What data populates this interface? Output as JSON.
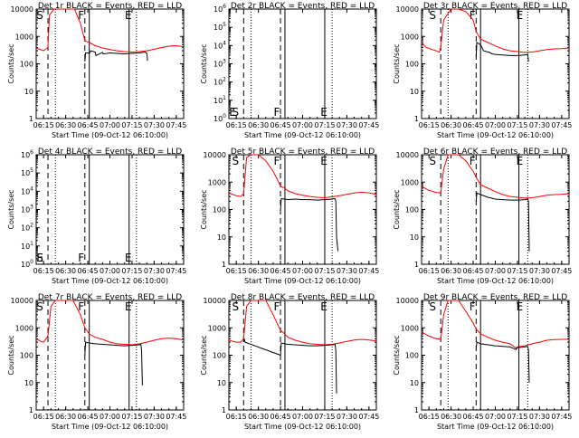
{
  "figure": {
    "xlabel": "Start Time (09-Oct-12 06:10:00)",
    "ylabel": "Counts/sec",
    "x_ticks": [
      "06:15",
      "06:30",
      "06:45",
      "07:00",
      "07:15",
      "07:30",
      "07:45"
    ],
    "x_tick_minutes": [
      5,
      20,
      35,
      50,
      65,
      80,
      95
    ],
    "xlim_minutes_after_0610": [
      0,
      100
    ],
    "colors": {
      "events": "#000000",
      "lld": "#ff0000"
    }
  },
  "chart_data": [
    {
      "type": "line",
      "title": "Det 1r BLACK = Events, RED = LLD",
      "ylabel": "Counts/sec",
      "xlabel": "",
      "y_scale": "log",
      "ylim": [
        1,
        10000
      ],
      "y_ticks": [
        "1",
        "10",
        "100",
        "1000",
        "10000"
      ],
      "markers": [
        {
          "minute": 8,
          "style": "dashed",
          "label": "S"
        },
        {
          "minute": 13,
          "style": "dotted",
          "label": ""
        },
        {
          "minute": 33,
          "style": "dashed",
          "label": ""
        },
        {
          "minute": 36,
          "style": "solid",
          "label": "F"
        },
        {
          "minute": 63,
          "style": "solid",
          "label": ""
        },
        {
          "minute": 68,
          "style": "dotted",
          "label": "E"
        }
      ],
      "series": [
        {
          "name": "LLD",
          "color": "#ff0000",
          "x": [
            0,
            5,
            8,
            9,
            12,
            20,
            26,
            30,
            33,
            36,
            40,
            45,
            50,
            55,
            60,
            65,
            70,
            75,
            80,
            85,
            90,
            95,
            100
          ],
          "y": [
            380,
            300,
            400,
            6000,
            10000,
            10000,
            10000,
            3000,
            700,
            600,
            460,
            380,
            330,
            300,
            280,
            270,
            280,
            300,
            340,
            390,
            440,
            460,
            420
          ]
        },
        {
          "name": "Events",
          "color": "#000000",
          "x": [
            33,
            33.5,
            35,
            36,
            37,
            40,
            40.5,
            45,
            45.5,
            50,
            55,
            60,
            65,
            70,
            74,
            75,
            75.5
          ],
          "y": [
            120,
            250,
            250,
            240,
            300,
            270,
            200,
            260,
            230,
            250,
            240,
            230,
            240,
            250,
            270,
            240,
            130
          ]
        }
      ]
    },
    {
      "type": "line",
      "title": "Det 2r BLACK = Events, RED = LLD",
      "ylabel": "Counts/sec",
      "xlabel": "",
      "y_scale": "log",
      "ylim": [
        1,
        1000000
      ],
      "y_ticks": [
        "10^0",
        "10^1",
        "10^2",
        "10^3",
        "10^4",
        "10^5",
        "10^6"
      ],
      "markers": [
        {
          "minute": 10,
          "style": "dashed",
          "label": "S"
        },
        {
          "minute": 15,
          "style": "dotted",
          "label": ""
        },
        {
          "minute": 35,
          "style": "dashed",
          "label": ""
        },
        {
          "minute": 38,
          "style": "solid",
          "label": "F"
        },
        {
          "minute": 65,
          "style": "solid",
          "label": ""
        },
        {
          "minute": 70,
          "style": "dotted",
          "label": "E"
        }
      ],
      "corner_label": "E",
      "series": []
    },
    {
      "type": "line",
      "title": "Det 3r BLACK = Events, RED = LLD",
      "ylabel": "Counts/sec",
      "xlabel": "",
      "y_scale": "log",
      "ylim": [
        1,
        10000
      ],
      "y_ticks": [
        "1",
        "10",
        "100",
        "1000",
        "10000"
      ],
      "markers": [
        {
          "minute": 13,
          "style": "dashed",
          "label": "S"
        },
        {
          "minute": 18,
          "style": "dotted",
          "label": ""
        },
        {
          "minute": 37,
          "style": "dashed",
          "label": ""
        },
        {
          "minute": 40,
          "style": "solid",
          "label": "F"
        },
        {
          "minute": 66,
          "style": "solid",
          "label": ""
        },
        {
          "minute": 72,
          "style": "dotted",
          "label": "E"
        }
      ],
      "series": [
        {
          "name": "LLD",
          "color": "#ff0000",
          "x": [
            0,
            3,
            8,
            10,
            12,
            13,
            15,
            20,
            25,
            30,
            35,
            37,
            40,
            45,
            50,
            55,
            60,
            65,
            70,
            75,
            80,
            85,
            90,
            95,
            100
          ],
          "y": [
            600,
            400,
            320,
            300,
            260,
            420,
            4000,
            10000,
            10000,
            8000,
            4000,
            1500,
            800,
            600,
            450,
            350,
            300,
            280,
            260,
            270,
            300,
            330,
            350,
            360,
            380
          ]
        },
        {
          "name": "Events",
          "color": "#000000",
          "x": [
            37,
            37.5,
            40,
            42,
            44,
            46,
            48,
            50,
            55,
            60,
            65,
            70,
            72,
            72.5
          ],
          "y": [
            180,
            600,
            500,
            300,
            280,
            260,
            230,
            220,
            210,
            200,
            200,
            210,
            220,
            120
          ]
        }
      ]
    },
    {
      "type": "line",
      "title": "Det 4r BLACK = Events, RED = LLD",
      "ylabel": "Counts/sec",
      "xlabel": "",
      "y_scale": "log",
      "ylim": [
        1,
        1000000
      ],
      "y_ticks": [
        "10^0",
        "10^1",
        "10^2",
        "10^3",
        "10^4",
        "10^5",
        "10^6"
      ],
      "markers": [
        {
          "minute": 8,
          "style": "dashed",
          "label": "S"
        },
        {
          "minute": 13,
          "style": "dotted",
          "label": ""
        },
        {
          "minute": 33,
          "style": "dashed",
          "label": ""
        },
        {
          "minute": 36,
          "style": "solid",
          "label": "F"
        },
        {
          "minute": 63,
          "style": "solid",
          "label": ""
        },
        {
          "minute": 68,
          "style": "dotted",
          "label": "E"
        }
      ],
      "corner_label": "E",
      "series": []
    },
    {
      "type": "line",
      "title": "Det 5r BLACK = Events, RED = LLD",
      "ylabel": "Counts/sec",
      "xlabel": "",
      "y_scale": "log",
      "ylim": [
        1,
        10000
      ],
      "y_ticks": [
        "1",
        "10",
        "100",
        "1000",
        "10000"
      ],
      "markers": [
        {
          "minute": 10,
          "style": "dashed",
          "label": "S"
        },
        {
          "minute": 15,
          "style": "dotted",
          "label": ""
        },
        {
          "minute": 35,
          "style": "dashed",
          "label": ""
        },
        {
          "minute": 38,
          "style": "solid",
          "label": "F"
        },
        {
          "minute": 65,
          "style": "solid",
          "label": ""
        },
        {
          "minute": 70,
          "style": "dotted",
          "label": "E"
        }
      ],
      "series": [
        {
          "name": "LLD",
          "color": "#ff0000",
          "x": [
            0,
            5,
            8,
            10,
            12,
            15,
            20,
            25,
            30,
            33,
            35,
            38,
            40,
            45,
            50,
            55,
            60,
            65,
            70,
            75,
            80,
            85,
            90,
            95,
            100
          ],
          "y": [
            400,
            320,
            300,
            380,
            8000,
            10000,
            10000,
            6000,
            2500,
            1200,
            700,
            600,
            480,
            380,
            330,
            300,
            280,
            270,
            290,
            320,
            360,
            400,
            430,
            400,
            360
          ]
        },
        {
          "name": "Events",
          "color": "#000000",
          "x": [
            35,
            35.5,
            38,
            40,
            45,
            50,
            55,
            60,
            65,
            70,
            72,
            72.5,
            73,
            74
          ],
          "y": [
            100,
            250,
            240,
            230,
            240,
            230,
            230,
            220,
            230,
            240,
            250,
            200,
            10,
            3
          ]
        }
      ]
    },
    {
      "type": "line",
      "title": "Det 6r BLACK = Events, RED = LLD",
      "ylabel": "Counts/sec",
      "xlabel": "",
      "y_scale": "log",
      "ylim": [
        1,
        10000
      ],
      "y_ticks": [
        "1",
        "10",
        "100",
        "1000",
        "10000"
      ],
      "markers": [
        {
          "minute": 13,
          "style": "dashed",
          "label": "S"
        },
        {
          "minute": 18,
          "style": "dotted",
          "label": ""
        },
        {
          "minute": 37,
          "style": "dashed",
          "label": ""
        },
        {
          "minute": 40,
          "style": "solid",
          "label": "F"
        },
        {
          "minute": 66,
          "style": "solid",
          "label": ""
        },
        {
          "minute": 72,
          "style": "dotted",
          "label": "E"
        }
      ],
      "series": [
        {
          "name": "LLD",
          "color": "#ff0000",
          "x": [
            0,
            5,
            10,
            13,
            15,
            18,
            20,
            25,
            30,
            35,
            37,
            40,
            45,
            50,
            55,
            60,
            65,
            70,
            75,
            80,
            85,
            90,
            95,
            100
          ],
          "y": [
            700,
            500,
            420,
            400,
            3000,
            10000,
            10000,
            10000,
            6000,
            2500,
            1500,
            800,
            600,
            450,
            350,
            300,
            280,
            260,
            270,
            300,
            330,
            350,
            360,
            380
          ]
        },
        {
          "name": "Events",
          "color": "#000000",
          "x": [
            37,
            37.5,
            40,
            45,
            50,
            55,
            60,
            65,
            70,
            72,
            72.5,
            73
          ],
          "y": [
            200,
            400,
            350,
            280,
            240,
            230,
            220,
            220,
            230,
            240,
            200,
            3
          ]
        }
      ]
    },
    {
      "type": "line",
      "title": "Det 7r BLACK = Events, RED = LLD",
      "ylabel": "Counts/sec",
      "xlabel": "",
      "y_scale": "log",
      "ylim": [
        1,
        10000
      ],
      "y_ticks": [
        "1",
        "10",
        "100",
        "1000",
        "10000"
      ],
      "markers": [
        {
          "minute": 8,
          "style": "dashed",
          "label": "S"
        },
        {
          "minute": 13,
          "style": "dotted",
          "label": ""
        },
        {
          "minute": 33,
          "style": "dashed",
          "label": ""
        },
        {
          "minute": 36,
          "style": "solid",
          "label": "F"
        },
        {
          "minute": 63,
          "style": "solid",
          "label": ""
        },
        {
          "minute": 68,
          "style": "dotted",
          "label": "E"
        }
      ],
      "series": [
        {
          "name": "LLD",
          "color": "#ff0000",
          "x": [
            0,
            3,
            5,
            8,
            10,
            13,
            20,
            25,
            30,
            33,
            36,
            40,
            45,
            50,
            55,
            60,
            65,
            70,
            75,
            80,
            85,
            90,
            95,
            100
          ],
          "y": [
            400,
            320,
            300,
            500,
            6000,
            10000,
            10000,
            10000,
            3000,
            1000,
            600,
            450,
            380,
            300,
            260,
            250,
            240,
            260,
            300,
            350,
            400,
            420,
            400,
            360
          ]
        },
        {
          "name": "Events",
          "color": "#000000",
          "x": [
            33,
            33.5,
            36,
            40,
            45,
            50,
            55,
            60,
            65,
            70,
            71,
            71.5,
            72
          ],
          "y": [
            100,
            300,
            280,
            260,
            250,
            240,
            230,
            220,
            230,
            240,
            250,
            150,
            8
          ]
        }
      ]
    },
    {
      "type": "line",
      "title": "Det 8r BLACK = Events, RED = LLD",
      "ylabel": "Counts/sec",
      "xlabel": "",
      "y_scale": "log",
      "ylim": [
        1,
        10000
      ],
      "y_ticks": [
        "1",
        "10",
        "100",
        "1000",
        "10000"
      ],
      "markers": [
        {
          "minute": 10,
          "style": "dashed",
          "label": "S"
        },
        {
          "minute": 15,
          "style": "dotted",
          "label": ""
        },
        {
          "minute": 35,
          "style": "dashed",
          "label": ""
        },
        {
          "minute": 38,
          "style": "solid",
          "label": "F"
        },
        {
          "minute": 65,
          "style": "solid",
          "label": ""
        },
        {
          "minute": 70,
          "style": "dotted",
          "label": "E"
        }
      ],
      "series": [
        {
          "name": "LLD",
          "color": "#ff0000",
          "x": [
            0,
            5,
            8,
            10,
            12,
            15,
            20,
            25,
            30,
            35,
            38,
            40,
            45,
            50,
            55,
            60,
            65,
            70,
            75,
            80,
            85,
            90,
            95,
            100
          ],
          "y": [
            350,
            300,
            300,
            400,
            6000,
            10000,
            10000,
            10000,
            3000,
            800,
            600,
            450,
            350,
            300,
            260,
            250,
            240,
            250,
            280,
            320,
            360,
            380,
            360,
            330
          ]
        },
        {
          "name": "Events",
          "color": "#000000",
          "x": [
            10,
            10.5,
            11,
            35,
            35.5,
            38,
            40,
            45,
            50,
            55,
            60,
            65,
            70,
            72,
            72.5,
            73
          ],
          "y": [
            300,
            400,
            300,
            100,
            280,
            260,
            250,
            240,
            230,
            220,
            220,
            230,
            240,
            250,
            150,
            4
          ]
        }
      ]
    },
    {
      "type": "line",
      "title": "Det 9r BLACK = Events, RED = LLD",
      "ylabel": "Counts/sec",
      "xlabel": "",
      "y_scale": "log",
      "ylim": [
        1,
        10000
      ],
      "y_ticks": [
        "1",
        "10",
        "100",
        "1000",
        "10000"
      ],
      "markers": [
        {
          "minute": 13,
          "style": "dashed",
          "label": "S"
        },
        {
          "minute": 18,
          "style": "dotted",
          "label": ""
        },
        {
          "minute": 37,
          "style": "dashed",
          "label": ""
        },
        {
          "minute": 40,
          "style": "solid",
          "label": "F"
        },
        {
          "minute": 66,
          "style": "solid",
          "label": ""
        },
        {
          "minute": 72,
          "style": "dotted",
          "label": "E"
        }
      ],
      "series": [
        {
          "name": "LLD",
          "color": "#ff0000",
          "x": [
            0,
            5,
            10,
            13,
            15,
            18,
            20,
            25,
            30,
            35,
            37,
            40,
            45,
            50,
            55,
            60,
            62,
            64,
            65,
            70,
            75,
            80,
            85,
            90,
            95,
            100
          ],
          "y": [
            700,
            500,
            400,
            380,
            3000,
            10000,
            10000,
            10000,
            4000,
            1500,
            900,
            600,
            450,
            350,
            300,
            260,
            220,
            180,
            200,
            220,
            260,
            300,
            350,
            370,
            380,
            380
          ]
        },
        {
          "name": "Events",
          "color": "#000000",
          "x": [
            37,
            37.5,
            40,
            45,
            50,
            55,
            60,
            62,
            64,
            65,
            70,
            72,
            72.5,
            73
          ],
          "y": [
            180,
            300,
            260,
            240,
            220,
            210,
            200,
            180,
            160,
            190,
            200,
            210,
            150,
            10
          ]
        }
      ]
    }
  ]
}
